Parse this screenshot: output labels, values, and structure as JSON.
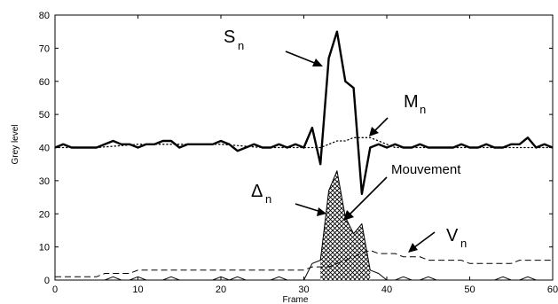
{
  "chart_data": {
    "type": "line",
    "xlabel": "Frame",
    "ylabel": "Grey level",
    "xlim": [
      0,
      60
    ],
    "ylim": [
      0,
      80
    ],
    "xticks": [
      0,
      10,
      20,
      30,
      40,
      50,
      60
    ],
    "yticks": [
      0,
      10,
      20,
      30,
      40,
      50,
      60,
      70,
      80
    ],
    "grid": false,
    "series": [
      {
        "name": "S_n",
        "style": "thick-solid",
        "x": [
          0,
          1,
          2,
          3,
          4,
          5,
          6,
          7,
          8,
          9,
          10,
          11,
          12,
          13,
          14,
          15,
          16,
          17,
          18,
          19,
          20,
          21,
          22,
          23,
          24,
          25,
          26,
          27,
          28,
          29,
          30,
          31,
          32,
          33,
          34,
          35,
          36,
          37,
          38,
          39,
          40,
          41,
          42,
          43,
          44,
          45,
          46,
          47,
          48,
          49,
          50,
          51,
          52,
          53,
          54,
          55,
          56,
          57,
          58,
          59,
          60
        ],
        "y": [
          40,
          41,
          40,
          40,
          40,
          40,
          41,
          42,
          41,
          41,
          40,
          41,
          41,
          42,
          42,
          40,
          41,
          41,
          41,
          41,
          42,
          41,
          39,
          40,
          41,
          40,
          40,
          41,
          40,
          41,
          40,
          46,
          35,
          67,
          75,
          60,
          58,
          26,
          40,
          41,
          40,
          41,
          40,
          40,
          41,
          40,
          40,
          40,
          40,
          41,
          40,
          40,
          41,
          40,
          40,
          41,
          41,
          43,
          40,
          41,
          40
        ]
      },
      {
        "name": "M_n",
        "style": "dotted",
        "x": [
          0,
          5,
          10,
          15,
          20,
          25,
          30,
          31,
          32,
          33,
          34,
          35,
          36,
          37,
          38,
          39,
          40,
          41,
          42,
          45,
          50,
          55,
          60
        ],
        "y": [
          40,
          40,
          41,
          41,
          41,
          40,
          40,
          40,
          40,
          41,
          42,
          42,
          43,
          43,
          43,
          42,
          41,
          40,
          40,
          40,
          40,
          40,
          40
        ]
      },
      {
        "name": "V_n",
        "style": "dashed",
        "x": [
          0,
          1,
          2,
          3,
          4,
          5,
          6,
          7,
          8,
          9,
          10,
          11,
          12,
          13,
          14,
          15,
          16,
          17,
          18,
          19,
          20,
          21,
          22,
          23,
          24,
          25,
          26,
          27,
          28,
          29,
          30,
          31,
          32,
          33,
          34,
          35,
          36,
          37,
          38,
          39,
          40,
          41,
          42,
          43,
          44,
          45,
          46,
          47,
          48,
          49,
          50,
          51,
          52,
          53,
          54,
          55,
          56,
          57,
          58,
          59,
          60
        ],
        "y": [
          1,
          1,
          1,
          1,
          1,
          1,
          2,
          2,
          2,
          2,
          3,
          3,
          3,
          3,
          3,
          3,
          3,
          3,
          3,
          3,
          3,
          3,
          3,
          3,
          3,
          3,
          3,
          3,
          3,
          3,
          3,
          4,
          4,
          4,
          5,
          6,
          7,
          8,
          9,
          8,
          8,
          8,
          7,
          7,
          7,
          6,
          6,
          6,
          6,
          6,
          5,
          5,
          5,
          5,
          5,
          5,
          6,
          6,
          6,
          6,
          6
        ]
      },
      {
        "name": "Δ_n",
        "style": "thin-solid-filled",
        "x": [
          0,
          1,
          2,
          3,
          4,
          5,
          6,
          7,
          8,
          9,
          10,
          11,
          12,
          13,
          14,
          15,
          16,
          17,
          18,
          19,
          20,
          21,
          22,
          23,
          24,
          25,
          26,
          27,
          28,
          29,
          30,
          31,
          32,
          33,
          34,
          35,
          36,
          37,
          38,
          39,
          40,
          41,
          42,
          43,
          44,
          45,
          46,
          47,
          48,
          49,
          50,
          51,
          52,
          53,
          54,
          55,
          56,
          57,
          58,
          59,
          60
        ],
        "y": [
          0,
          0,
          0,
          0,
          0,
          0,
          0,
          1,
          0,
          0,
          1,
          0,
          0,
          0,
          1,
          0,
          0,
          0,
          0,
          0,
          1,
          0,
          1,
          0,
          0,
          0,
          0,
          1,
          0,
          0,
          0,
          5,
          6,
          27,
          33,
          19,
          14,
          17,
          3,
          2,
          0,
          0,
          1,
          0,
          0,
          1,
          0,
          0,
          0,
          0,
          0,
          0,
          0,
          0,
          1,
          0,
          0,
          1,
          0,
          0,
          0
        ]
      }
    ],
    "annotations": {
      "s": {
        "main": "S",
        "sub": "n"
      },
      "m": {
        "main": "M",
        "sub": "n"
      },
      "v": {
        "main": "V",
        "sub": "n"
      },
      "delta": {
        "main": "Δ",
        "sub": "n"
      },
      "mouvement": "Mouvement"
    }
  }
}
